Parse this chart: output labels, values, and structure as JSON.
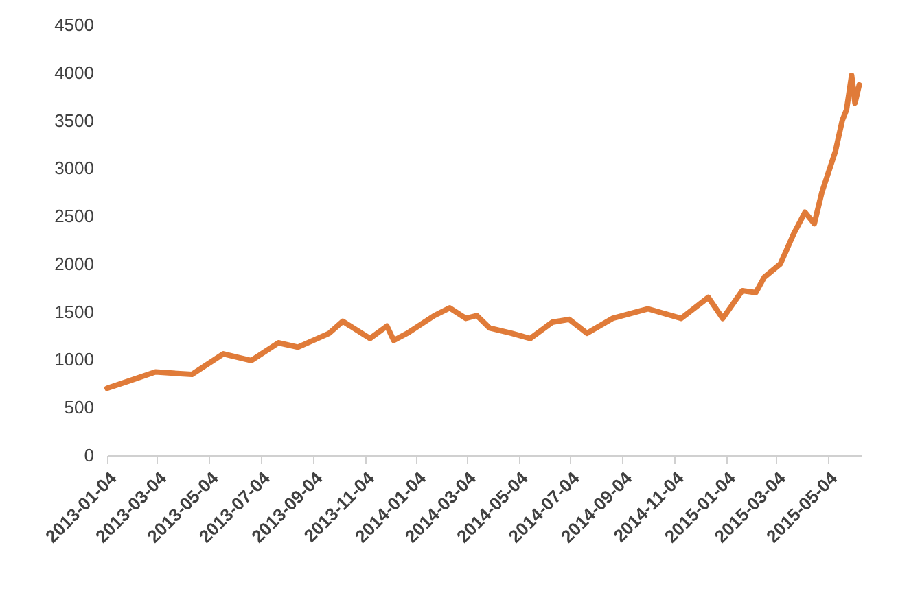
{
  "chart_data": {
    "type": "line",
    "x": [
      "2013-01-04",
      "2013-01-31",
      "2013-03-02",
      "2013-04-14",
      "2013-05-21",
      "2013-06-23",
      "2013-07-25",
      "2013-08-17",
      "2013-09-23",
      "2013-10-09",
      "2013-11-10",
      "2013-11-30",
      "2013-12-08",
      "2013-12-24",
      "2014-01-25",
      "2014-02-12",
      "2014-03-03",
      "2014-03-16",
      "2014-03-31",
      "2014-04-26",
      "2014-05-18",
      "2014-06-13",
      "2014-07-03",
      "2014-07-24",
      "2014-08-23",
      "2014-10-04",
      "2014-11-12",
      "2014-12-14",
      "2014-12-31",
      "2015-01-23",
      "2015-02-08",
      "2015-02-18",
      "2015-03-09",
      "2015-03-25",
      "2015-04-07",
      "2015-04-18",
      "2015-04-27",
      "2015-05-13",
      "2015-05-21",
      "2015-05-26",
      "2015-06-01",
      "2015-06-05",
      "2015-06-10"
    ],
    "series": [
      {
        "color": "#e07b39",
        "values": [
          700,
          780,
          870,
          845,
          1060,
          990,
          1175,
          1130,
          1275,
          1400,
          1220,
          1350,
          1200,
          1275,
          1460,
          1540,
          1430,
          1460,
          1330,
          1275,
          1220,
          1390,
          1420,
          1275,
          1430,
          1530,
          1430,
          1650,
          1430,
          1720,
          1700,
          1860,
          2000,
          2320,
          2540,
          2420,
          2750,
          3180,
          3500,
          3610,
          3970,
          3680,
          3870
        ]
      }
    ],
    "xlim": [
      "2013-01-04",
      "2015-06-12"
    ],
    "xticks": [
      "2013-01-04",
      "2013-03-04",
      "2013-05-04",
      "2013-07-04",
      "2013-09-04",
      "2013-11-04",
      "2014-01-04",
      "2014-03-04",
      "2014-05-04",
      "2014-07-04",
      "2014-09-04",
      "2014-11-04",
      "2015-01-04",
      "2015-03-04",
      "2015-05-04"
    ],
    "ylim": [
      0,
      4500
    ],
    "yticks": [
      0,
      500,
      1000,
      1500,
      2000,
      2500,
      3000,
      3500,
      4000,
      4500
    ],
    "grid": false,
    "line_style": "solid",
    "marker": "none"
  }
}
